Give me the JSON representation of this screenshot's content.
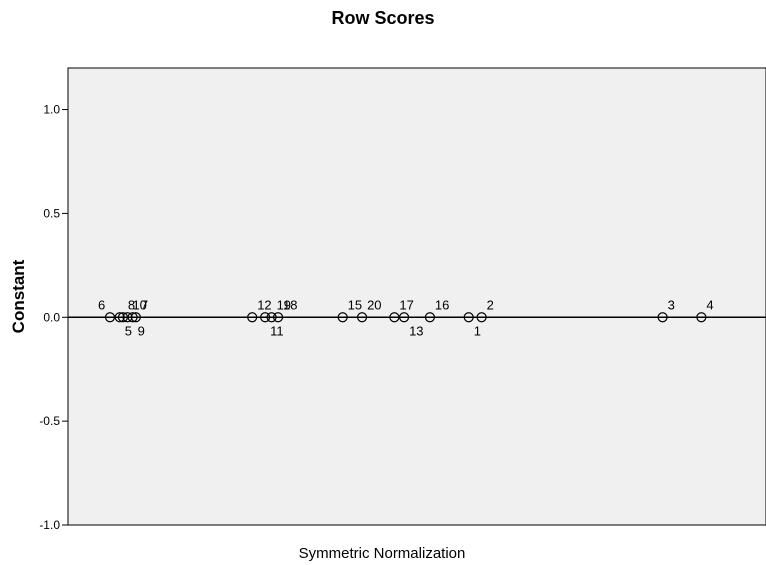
{
  "chart_data": {
    "type": "scatter",
    "title": "Row Scores",
    "xlabel": "Symmetric Normalization",
    "ylabel": "Constant",
    "ylim": [
      -1.0,
      1.2
    ],
    "y_ticks": [
      "1.0",
      "0.5",
      "0.0",
      "-0.5",
      "-1.0"
    ],
    "y_tick_values": [
      1.0,
      0.5,
      0.0,
      -0.5,
      -1.0
    ],
    "reference_line_y": 0.0,
    "x_tick_labels_shown": false,
    "background": "#f0f0f0",
    "points": [
      {
        "label": "1",
        "x": 0.54,
        "y": 0.0,
        "label_pos": "below"
      },
      {
        "label": "2",
        "x": 0.56,
        "y": 0.0,
        "label_pos": "above"
      },
      {
        "label": "3",
        "x": 0.84,
        "y": 0.0,
        "label_pos": "above"
      },
      {
        "label": "4",
        "x": 0.9,
        "y": 0.0,
        "label_pos": "above"
      },
      {
        "label": "5",
        "x": 0.0,
        "y": 0.0,
        "label_pos": "below"
      },
      {
        "label": "6",
        "x": -0.015,
        "y": 0.0,
        "label_pos": "above-left"
      },
      {
        "label": "7",
        "x": 0.025,
        "y": 0.0,
        "label_pos": "above"
      },
      {
        "label": "8",
        "x": 0.005,
        "y": 0.0,
        "label_pos": "above"
      },
      {
        "label": "9",
        "x": 0.02,
        "y": 0.0,
        "label_pos": "below"
      },
      {
        "label": "10",
        "x": 0.012,
        "y": 0.0,
        "label_pos": "above"
      },
      {
        "label": "11",
        "x": 0.225,
        "y": 0.0,
        "label_pos": "below"
      },
      {
        "label": "12",
        "x": 0.205,
        "y": 0.0,
        "label_pos": "above"
      },
      {
        "label": "13",
        "x": 0.44,
        "y": 0.0,
        "label_pos": "below"
      },
      {
        "label": "15",
        "x": 0.345,
        "y": 0.0,
        "label_pos": "above"
      },
      {
        "label": "16",
        "x": 0.48,
        "y": 0.0,
        "label_pos": "above"
      },
      {
        "label": "17",
        "x": 0.425,
        "y": 0.0,
        "label_pos": "above"
      },
      {
        "label": "18",
        "x": 0.245,
        "y": 0.0,
        "label_pos": "above"
      },
      {
        "label": "19",
        "x": 0.235,
        "y": 0.0,
        "label_pos": "above"
      },
      {
        "label": "20",
        "x": 0.375,
        "y": 0.0,
        "label_pos": "above"
      }
    ]
  }
}
